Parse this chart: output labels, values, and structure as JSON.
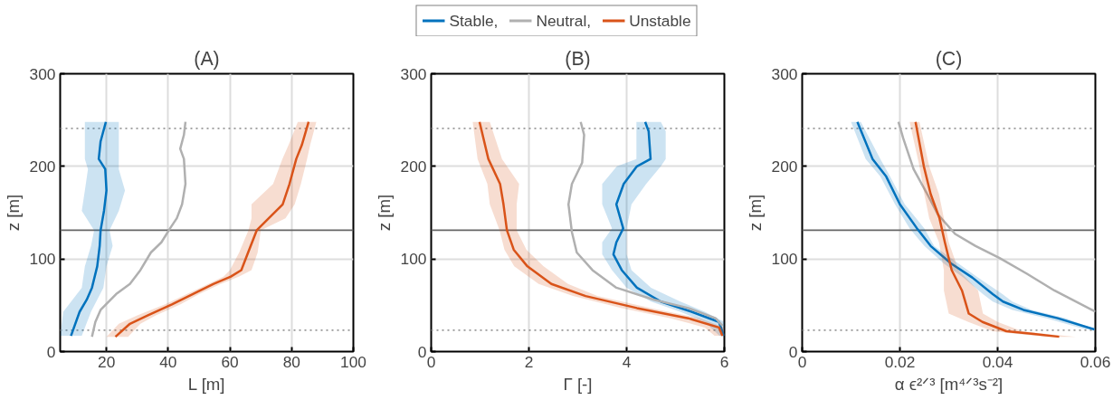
{
  "chart_data": [
    {
      "type": "line",
      "orientation": "horizontal",
      "title": "(A)",
      "xlabel": "L [m]",
      "ylabel": "z [m]",
      "xlim": [
        5,
        100
      ],
      "xticks": [
        20,
        40,
        60,
        80,
        100
      ],
      "ylim": [
        0,
        300
      ],
      "yticks": [
        0,
        100,
        200,
        300
      ],
      "grid": true,
      "legend": "top",
      "ref_lines": [
        {
          "axis": "y",
          "value": 241,
          "color": "#999999",
          "line_style": "dotted"
        },
        {
          "axis": "y",
          "value": 131,
          "color": "#666666",
          "line_style": "solid"
        },
        {
          "axis": "y",
          "value": 23,
          "color": "#999999",
          "line_style": "dotted"
        }
      ],
      "series": [
        {
          "name": "Stable,",
          "color": "#0072bd",
          "values": [
            8.5,
            11.3,
            13.6,
            15.3,
            17.0,
            17.8,
            18.1,
            19.2,
            20.0,
            19.6,
            17.5,
            18.1,
            19.8
          ],
          "x": [
            17,
            43,
            56,
            69,
            92,
            114,
            131,
            152,
            174,
            197,
            208,
            227,
            248
          ],
          "lower": [
            5,
            6,
            9,
            12,
            13,
            15,
            16,
            12,
            13,
            14,
            13,
            13,
            13
          ],
          "upper": [
            12,
            15,
            17,
            19,
            20,
            22,
            21,
            24,
            26,
            24,
            24,
            24,
            24
          ]
        },
        {
          "name": "Neutral,",
          "color": "#b0b0b0",
          "values": [
            15.3,
            16.4,
            18.1,
            23.1,
            27.6,
            31.0,
            34.4,
            37.8,
            40.6,
            42.8,
            44.5,
            45.6,
            45.1,
            43.9,
            45.1,
            45.6
          ],
          "x": [
            16,
            32,
            45,
            62,
            73,
            88,
            107,
            118,
            133,
            144,
            159,
            181,
            208,
            219,
            234,
            248
          ]
        },
        {
          "name": "Unstable",
          "color": "#d95319",
          "values": [
            22.9,
            27.6,
            33.3,
            41.2,
            47.9,
            54.6,
            60.3,
            63.7,
            65.9,
            68.7,
            72.6,
            77.1,
            79.3,
            81.5,
            83.3,
            85.5
          ],
          "x": [
            16,
            30,
            39,
            51,
            62,
            73,
            81,
            88,
            107,
            131,
            144,
            159,
            181,
            208,
            223,
            248
          ],
          "lower": [
            20,
            24,
            30,
            39,
            46,
            53,
            58,
            60,
            63,
            66,
            67,
            67,
            74,
            77,
            79,
            82
          ],
          "upper": [
            27,
            31,
            36,
            44,
            50,
            57,
            63,
            67,
            69,
            70,
            78,
            81,
            83,
            85,
            86,
            88
          ]
        }
      ]
    },
    {
      "type": "line",
      "orientation": "horizontal",
      "title": "(B)",
      "xlabel": "Γ [-]",
      "ylabel": "z [m]",
      "xlim": [
        0,
        6
      ],
      "xticks": [
        0,
        2,
        4,
        6
      ],
      "ylim": [
        0,
        300
      ],
      "yticks": [
        0,
        100,
        200,
        300
      ],
      "grid": true,
      "ref_lines": [
        {
          "axis": "y",
          "value": 241,
          "color": "#999999",
          "line_style": "dotted"
        },
        {
          "axis": "y",
          "value": 131,
          "color": "#666666",
          "line_style": "solid"
        },
        {
          "axis": "y",
          "value": 23,
          "color": "#999999",
          "line_style": "dotted"
        }
      ],
      "series": [
        {
          "color": "#0072bd",
          "values": [
            5.99,
            5.89,
            5.33,
            4.7,
            4.21,
            3.9,
            3.73,
            3.79,
            3.93,
            3.79,
            3.94,
            4.21,
            4.49,
            4.45,
            4.38
          ],
          "x": [
            17,
            32,
            43,
            54,
            69,
            88,
            105,
            118,
            133,
            159,
            181,
            200,
            208,
            238,
            248
          ],
          "lower": [
            5.9,
            5.6,
            5.1,
            4.5,
            4.0,
            3.7,
            3.5,
            3.5,
            3.7,
            3.5,
            3.5,
            3.8,
            4.2,
            4.2,
            4.2
          ],
          "upper": [
            6.0,
            6.0,
            5.6,
            5.1,
            4.5,
            4.1,
            4.0,
            4.0,
            4.0,
            4.1,
            4.4,
            4.7,
            4.8,
            4.8,
            4.7
          ]
        },
        {
          "color": "#b0b0b0",
          "values": [
            5.96,
            5.82,
            5.26,
            4.56,
            3.79,
            3.3,
            2.98,
            2.88,
            2.81,
            2.88,
            3.09,
            3.13,
            3.06
          ],
          "x": [
            28,
            36,
            47,
            56,
            69,
            88,
            107,
            129,
            159,
            181,
            204,
            234,
            248
          ]
        },
        {
          "color": "#d95319",
          "values": [
            5.96,
            5.89,
            5.26,
            4.21,
            3.16,
            2.46,
            1.97,
            1.69,
            1.55,
            1.48,
            1.41,
            1.17,
            0.99
          ],
          "x": [
            17,
            26,
            36,
            47,
            60,
            73,
            92,
            110,
            131,
            159,
            181,
            208,
            248
          ],
          "lower": [
            5.8,
            5.6,
            4.9,
            3.9,
            2.9,
            2.2,
            1.7,
            1.5,
            1.4,
            1.2,
            1.15,
            0.95,
            0.85
          ],
          "upper": [
            6.0,
            6.0,
            5.5,
            4.5,
            3.4,
            2.8,
            2.3,
            1.95,
            1.75,
            1.75,
            1.8,
            1.45,
            1.2
          ]
        }
      ]
    },
    {
      "type": "line",
      "orientation": "horizontal",
      "title": "(C)",
      "xlabel": "α ϵ²ᐟ³ [m⁴ᐟ³s⁻²]",
      "ylabel": "z [m]",
      "xlim": [
        0,
        0.06
      ],
      "xticks": [
        0,
        0.02,
        0.04,
        0.06
      ],
      "ylim": [
        0,
        300
      ],
      "yticks": [
        0,
        100,
        200,
        300
      ],
      "grid": true,
      "ref_lines": [
        {
          "axis": "y",
          "value": 241,
          "color": "#999999",
          "line_style": "dotted"
        },
        {
          "axis": "y",
          "value": 131,
          "color": "#666666",
          "line_style": "solid"
        },
        {
          "axis": "y",
          "value": 23,
          "color": "#999999",
          "line_style": "dotted"
        }
      ],
      "series": [
        {
          "color": "#0072bd",
          "values": [
            0.0598,
            0.0523,
            0.0453,
            0.0411,
            0.039,
            0.0348,
            0.0305,
            0.0263,
            0.0235,
            0.02,
            0.0172,
            0.0144,
            0.0113
          ],
          "x": [
            24,
            36,
            45,
            54,
            62,
            80,
            95,
            114,
            133,
            159,
            189,
            208,
            248
          ],
          "lower": [
            0.058,
            0.05,
            0.043,
            0.039,
            0.037,
            0.033,
            0.029,
            0.025,
            0.022,
            0.019,
            0.016,
            0.013,
            0.01
          ],
          "upper": [
            0.06,
            0.054,
            0.047,
            0.043,
            0.041,
            0.036,
            0.032,
            0.027,
            0.025,
            0.021,
            0.018,
            0.016,
            0.012
          ]
        },
        {
          "color": "#b0b0b0",
          "values": [
            0.06,
            0.0516,
            0.046,
            0.0404,
            0.0355,
            0.0313,
            0.0278,
            0.0256,
            0.0228,
            0.0207,
            0.0197
          ],
          "x": [
            43,
            66,
            84,
            101,
            114,
            127,
            148,
            170,
            197,
            230,
            248
          ]
        },
        {
          "color": "#d95319",
          "values": [
            0.0526,
            0.0474,
            0.0418,
            0.0369,
            0.0341,
            0.0327,
            0.0306,
            0.0292,
            0.0281,
            0.0263,
            0.0249,
            0.0232
          ],
          "x": [
            16,
            19,
            22,
            32,
            41,
            66,
            88,
            118,
            144,
            170,
            200,
            248
          ],
          "lower": [
            0.05,
            0.044,
            0.039,
            0.034,
            0.03,
            0.029,
            0.029,
            0.028,
            0.026,
            0.025,
            0.024,
            0.022
          ],
          "upper": [
            0.056,
            0.05,
            0.045,
            0.04,
            0.037,
            0.036,
            0.032,
            0.03,
            0.029,
            0.028,
            0.026,
            0.024
          ]
        }
      ]
    }
  ]
}
